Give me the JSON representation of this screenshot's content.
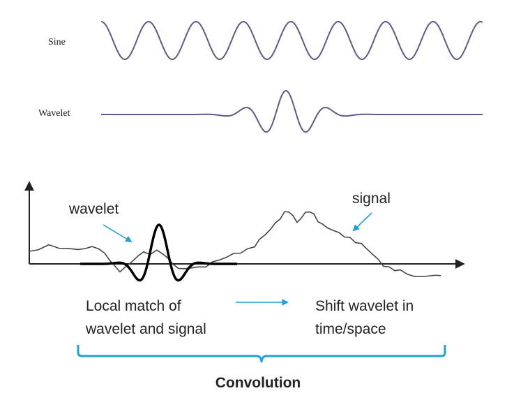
{
  "top_panel": {
    "sine_label": "Sine",
    "wavelet_label": "Wavelet",
    "wave_color": "#5b5b8a"
  },
  "bottom_panel": {
    "wavelet_label": "wavelet",
    "signal_label": "signal",
    "local_match_line1": "Local match of",
    "local_match_line2": "wavelet and signal",
    "shift_line1": "Shift wavelet in",
    "shift_line2": "time/space",
    "convolution_label": "Convolution",
    "arrow_color": "#1fa0d8",
    "brace_color": "#1fa0d8",
    "signal_color": "#444444",
    "wavelet_color": "#000000"
  }
}
